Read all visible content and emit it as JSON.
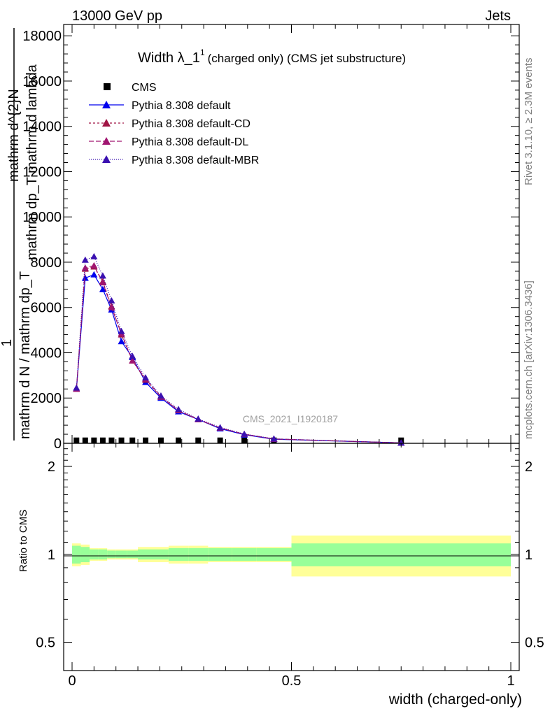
{
  "header": {
    "left": "13000 GeV pp",
    "right": "Jets"
  },
  "side": {
    "rivet": "Rivet 3.1.10, ≥ 2.3M events",
    "mcplots": "mcplots.cern.ch [arXiv:1306.3436]"
  },
  "chart_data": [
    {
      "type": "line",
      "title_main": "Width λ_1",
      "title_sup": "1",
      "title_rest": "(charged only) (CMS jet substructure)",
      "ylabel_lines": [
        "mathrm d^{2}N",
        "mathrm dp_T mathrm d lambda",
        "1",
        "mathrm d N / mathrm dp_T"
      ],
      "watermark": "CMS_2021_I1920187",
      "xlim": [
        0,
        1
      ],
      "ylim": [
        0,
        18500
      ],
      "yticks": [
        0,
        2000,
        4000,
        6000,
        8000,
        10000,
        12000,
        14000,
        16000,
        18000
      ],
      "ytick_labels": [
        "0",
        "2000",
        "4000",
        "6000",
        "8000",
        "10000",
        "12000",
        "14000",
        "16000",
        "18000"
      ],
      "legend": {
        "placement": "top-left",
        "entries": [
          {
            "label": "CMS",
            "marker": "square",
            "color": "#000000",
            "dash": "none"
          },
          {
            "label": "Pythia 8.308 default",
            "marker": "triangle",
            "color": "#0000ee",
            "dash": "solid"
          },
          {
            "label": "Pythia 8.308 default-CD",
            "marker": "triangle",
            "color": "#a01444",
            "dash": "3,3"
          },
          {
            "label": "Pythia 8.308 default-DL",
            "marker": "triangle",
            "color": "#a01470",
            "dash": "7,3"
          },
          {
            "label": "Pythia 8.308 default-MBR",
            "marker": "triangle",
            "color": "#3a10b0",
            "dash": "1,2"
          }
        ]
      },
      "x": [
        0.01,
        0.03,
        0.05,
        0.07,
        0.09,
        0.1125,
        0.1375,
        0.1675,
        0.2025,
        0.2425,
        0.2875,
        0.3375,
        0.3925,
        0.46,
        0.75
      ],
      "series": [
        {
          "name": "CMS",
          "values": [
            40,
            40,
            40,
            40,
            40,
            40,
            40,
            40,
            40,
            40,
            40,
            40,
            40,
            40,
            40
          ]
        },
        {
          "name": "Pythia 8.308 default",
          "values": [
            2400,
            7300,
            7450,
            6800,
            5900,
            4500,
            3800,
            2700,
            2000,
            1400,
            1050,
            650,
            380,
            180,
            20
          ]
        },
        {
          "name": "Pythia 8.308 default-CD",
          "values": [
            2400,
            7700,
            7800,
            7150,
            6050,
            4800,
            3650,
            2800,
            2050,
            1450,
            1050,
            680,
            400,
            190,
            20
          ]
        },
        {
          "name": "Pythia 8.308 default-DL",
          "values": [
            2400,
            7750,
            7850,
            7100,
            6000,
            4850,
            3650,
            2850,
            2050,
            1450,
            1050,
            680,
            400,
            190,
            20
          ]
        },
        {
          "name": "Pythia 8.308 default-MBR",
          "values": [
            2450,
            8100,
            8250,
            7400,
            6300,
            4950,
            3850,
            2900,
            2100,
            1500,
            1080,
            700,
            410,
            200,
            20
          ]
        }
      ]
    },
    {
      "type": "area",
      "ylabel": "Ratio to CMS",
      "xlabel": "width (charged-only)",
      "xlim": [
        0,
        1
      ],
      "xticks": [
        0,
        0.5,
        1
      ],
      "xtick_labels": [
        "0",
        "0.5",
        "1"
      ],
      "ylim": [
        0.4,
        2.4
      ],
      "scale": "log",
      "yticks": [
        0.5,
        1,
        2
      ],
      "ytick_labels": [
        "0.5",
        "1",
        "2"
      ],
      "bands": {
        "edges": [
          0,
          0.02,
          0.04,
          0.06,
          0.08,
          0.1,
          0.125,
          0.15,
          0.185,
          0.22,
          0.265,
          0.31,
          0.365,
          0.42,
          0.5,
          1.0
        ],
        "green_half_width": [
          0.07,
          0.06,
          0.04,
          0.04,
          0.03,
          0.03,
          0.03,
          0.04,
          0.04,
          0.05,
          0.05,
          0.05,
          0.05,
          0.05,
          0.09
        ],
        "yellow_half_width": [
          0.09,
          0.08,
          0.05,
          0.05,
          0.04,
          0.04,
          0.04,
          0.06,
          0.06,
          0.07,
          0.07,
          0.06,
          0.06,
          0.06,
          0.16
        ],
        "green_color": "#99ff99",
        "yellow_color": "#ffff99"
      }
    }
  ]
}
